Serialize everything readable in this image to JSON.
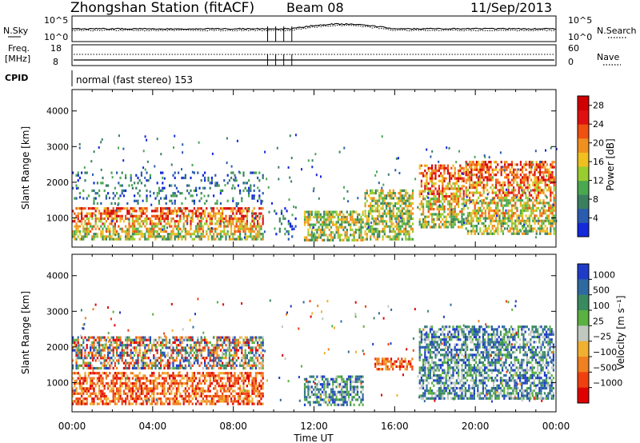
{
  "header": {
    "station": "Zhongshan Station (fitACF)",
    "beam": "Beam 08",
    "date": "11/Sep/2013"
  },
  "params": {
    "nsky_label": "N.Sky",
    "nsearch_label": "N.Search",
    "freq_label_1": "Freq.",
    "freq_label_2": "[MHz]",
    "nave_label": "Nave",
    "cpid_label": "CPID",
    "cpid_text": "normal (fast stereo) 153",
    "noise_ticks_left": [
      "10^5",
      "10^0"
    ],
    "noise_ticks_right": [
      "10^5",
      "10^0"
    ],
    "freq_ticks": [
      "18",
      "8"
    ],
    "nave_ticks": [
      "60",
      "0"
    ]
  },
  "chart_data": [
    {
      "type": "heatmap",
      "panel": "power",
      "ylabel": "Slant Range [km]",
      "ylim": [
        180,
        4600
      ],
      "yticks": [
        "1000",
        "2000",
        "3000",
        "4000"
      ],
      "ytick_values": [
        1000,
        2000,
        3000,
        4000
      ],
      "xlim": [
        0,
        24
      ],
      "colorbar": {
        "label": "Power [dB]",
        "ticks": [
          "4",
          "8",
          "12",
          "16",
          "20",
          "24",
          "28"
        ],
        "tick_values": [
          4,
          8,
          12,
          16,
          20,
          24,
          28
        ],
        "range": [
          0,
          30
        ],
        "colors": [
          "#1428dc",
          "#2a5cb0",
          "#3a8060",
          "#4aa850",
          "#9acc30",
          "#f0c020",
          "#f09020",
          "#f05010",
          "#e01010",
          "#d00000"
        ]
      },
      "regions": [
        {
          "t": [
            0.0,
            9.6
          ],
          "r": [
            300,
            1300
          ],
          "level": "high"
        },
        {
          "t": [
            0.0,
            9.6
          ],
          "r": [
            1300,
            2300
          ],
          "level": "low"
        },
        {
          "t": [
            10.0,
            11.2
          ],
          "r": [
            300,
            1300
          ],
          "level": "low"
        },
        {
          "t": [
            11.5,
            14.5
          ],
          "r": [
            300,
            1200
          ],
          "level": "mid"
        },
        {
          "t": [
            14.5,
            17.0
          ],
          "r": [
            300,
            1800
          ],
          "level": "mid"
        },
        {
          "t": [
            17.2,
            19.5
          ],
          "r": [
            700,
            2500
          ],
          "level": "high"
        },
        {
          "t": [
            19.5,
            24.0
          ],
          "r": [
            500,
            2600
          ],
          "level": "high"
        }
      ]
    },
    {
      "type": "heatmap",
      "panel": "velocity",
      "ylabel": "Slant Range [km]",
      "ylim": [
        180,
        4600
      ],
      "yticks": [
        "1000",
        "2000",
        "3000",
        "4000"
      ],
      "ytick_values": [
        1000,
        2000,
        3000,
        4000
      ],
      "xlim": [
        0,
        24
      ],
      "xlabel": "Time UT",
      "xticks": [
        "00:00",
        "04:00",
        "08:00",
        "12:00",
        "16:00",
        "20:00",
        "00:00"
      ],
      "xtick_values": [
        0,
        4,
        8,
        12,
        16,
        20,
        24
      ],
      "colorbar": {
        "label": "Velocity [m s⁻¹]",
        "ticks": [
          "1000",
          "500",
          "100",
          "25",
          "−25",
          "−100",
          "−500",
          "−1000"
        ],
        "colors": [
          "#1e3cc8",
          "#2e6aa0",
          "#3a8a60",
          "#5ab040",
          "#c0c8c0",
          "#f0b030",
          "#f08020",
          "#f04010",
          "#e00000"
        ]
      },
      "regions": [
        {
          "t": [
            0.0,
            9.6
          ],
          "r": [
            300,
            1300
          ],
          "level": "away"
        },
        {
          "t": [
            0.0,
            9.6
          ],
          "r": [
            1300,
            2300
          ],
          "level": "mixed"
        },
        {
          "t": [
            11.5,
            14.5
          ],
          "r": [
            300,
            1200
          ],
          "level": "toward"
        },
        {
          "t": [
            15.0,
            17.0
          ],
          "r": [
            1300,
            1700
          ],
          "level": "away"
        },
        {
          "t": [
            17.2,
            24.0
          ],
          "r": [
            500,
            2600
          ],
          "level": "toward"
        }
      ]
    }
  ]
}
